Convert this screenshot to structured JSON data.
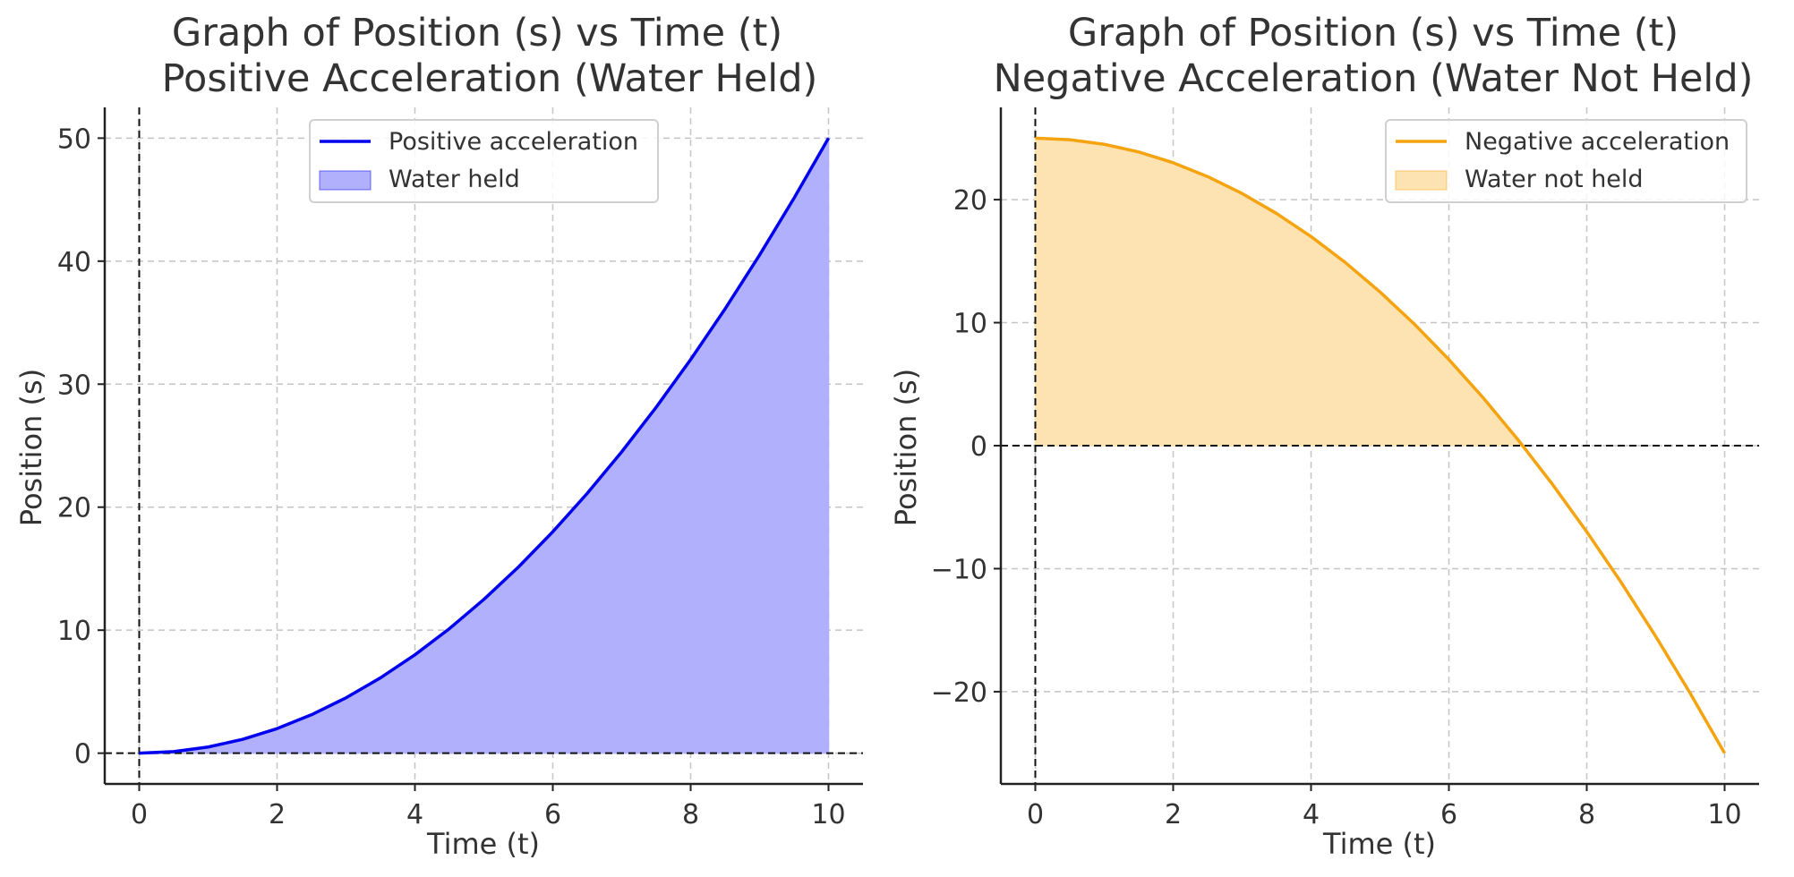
{
  "chart_data": [
    {
      "type": "area",
      "title": "Graph of Position (s) vs Time (t)",
      "subtitle": "Positive Acceleration (Water Held)",
      "xlabel": "Time (t)",
      "ylabel": "Position (s)",
      "xlim": [
        -0.5,
        10.5
      ],
      "ylim": [
        -2.5,
        52.5
      ],
      "xticks": [
        0,
        2,
        4,
        6,
        8,
        10
      ],
      "yticks": [
        0,
        10,
        20,
        30,
        40,
        50
      ],
      "ytick_labels": [
        "0",
        "10",
        "20",
        "30",
        "40",
        "50"
      ],
      "grid": true,
      "legend_position": "top-center",
      "series": [
        {
          "name": "Positive acceleration",
          "fill_name": "Water held",
          "color": "#0000ee",
          "fill_color": "#b0b0fc",
          "fill_to": 0,
          "x": [
            0,
            0.5,
            1,
            1.5,
            2,
            2.5,
            3,
            3.5,
            4,
            4.5,
            5,
            5.5,
            6,
            6.5,
            7,
            7.5,
            8,
            8.5,
            9,
            9.5,
            10
          ],
          "y": [
            0,
            0.125,
            0.5,
            1.125,
            2,
            3.125,
            4.5,
            6.125,
            8,
            10.125,
            12.5,
            15.125,
            18,
            21.125,
            24.5,
            28.125,
            32,
            36.125,
            40.5,
            45.125,
            50
          ]
        }
      ]
    },
    {
      "type": "area",
      "title": "Graph of Position (s) vs Time (t)",
      "subtitle": "Negative Acceleration (Water Not Held)",
      "xlabel": "Time (t)",
      "ylabel": "Position (s)",
      "xlim": [
        -0.5,
        10.5
      ],
      "ylim": [
        -27.5,
        27.5
      ],
      "xticks": [
        0,
        2,
        4,
        6,
        8,
        10
      ],
      "yticks": [
        -20,
        -10,
        0,
        10,
        20
      ],
      "ytick_labels": [
        "−20",
        "−10",
        "0",
        "10",
        "20"
      ],
      "grid": true,
      "legend_position": "top-right",
      "series": [
        {
          "name": "Negative acceleration",
          "fill_name": "Water not held",
          "color": "#f5a30f",
          "fill_color": "#fee3b2",
          "fill_to": 0,
          "fill_where": "positive",
          "x": [
            0,
            0.5,
            1,
            1.5,
            2,
            2.5,
            3,
            3.5,
            4,
            4.5,
            5,
            5.5,
            6,
            6.5,
            7,
            7.5,
            8,
            8.5,
            9,
            9.5,
            10
          ],
          "y": [
            25,
            24.875,
            24.5,
            23.875,
            23,
            21.875,
            20.5,
            18.875,
            17,
            14.875,
            12.5,
            9.875,
            7,
            3.875,
            0.5,
            -3.125,
            -7,
            -11.125,
            -15.5,
            -20.125,
            -25
          ]
        }
      ]
    }
  ]
}
